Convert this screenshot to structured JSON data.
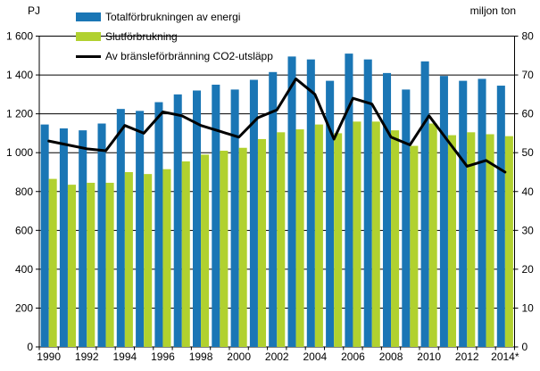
{
  "header": {
    "left_axis_title": "PJ",
    "right_axis_title": "miljon ton"
  },
  "legend": [
    {
      "label": "Totalförbrukningen av energi",
      "type": "bar",
      "color": "#1A76B5"
    },
    {
      "label": "Slutförbrukning",
      "type": "bar",
      "color": "#B1D12F"
    },
    {
      "label": "Av bränsleförbränning CO2-utsläpp",
      "type": "line",
      "color": "#000000"
    }
  ],
  "chart_data": {
    "type": "bar",
    "categories": [
      "1990",
      "1991",
      "1992",
      "1993",
      "1994",
      "1995",
      "1996",
      "1997",
      "1998",
      "1999",
      "2000",
      "2001",
      "2002",
      "2003",
      "2004",
      "2005",
      "2006",
      "2007",
      "2008",
      "2009",
      "2010",
      "2011",
      "2012",
      "2013",
      "2014"
    ],
    "x_tick_labels": [
      "1990",
      "1992",
      "1994",
      "1996",
      "1998",
      "2000",
      "2002",
      "2004",
      "2006",
      "2008",
      "2010",
      "2012",
      "2014*"
    ],
    "series": [
      {
        "name": "Totalförbrukningen av energi",
        "type": "bar",
        "axis": "left",
        "color": "#1A76B5",
        "values": [
          1145,
          1125,
          1115,
          1150,
          1225,
          1215,
          1260,
          1300,
          1320,
          1350,
          1325,
          1375,
          1415,
          1495,
          1480,
          1370,
          1510,
          1480,
          1410,
          1325,
          1470,
          1395,
          1370,
          1380,
          1345
        ]
      },
      {
        "name": "Slutförbrukning",
        "type": "bar",
        "axis": "left",
        "color": "#B1D12F",
        "values": [
          865,
          835,
          845,
          845,
          900,
          890,
          915,
          955,
          990,
          1010,
          1025,
          1070,
          1105,
          1120,
          1145,
          1100,
          1160,
          1160,
          1115,
          1035,
          1150,
          1090,
          1105,
          1095,
          1085
        ]
      },
      {
        "name": "Av bränsleförbränning CO2-utsläpp",
        "type": "line",
        "axis": "right",
        "color": "#000000",
        "values": [
          53,
          52,
          51,
          50.5,
          57,
          55,
          60.5,
          59.5,
          57,
          55.5,
          54,
          59,
          61,
          69,
          65,
          53.5,
          64,
          62.5,
          54,
          52,
          59.5,
          53,
          46.5,
          48,
          45
        ]
      }
    ],
    "left_axis": {
      "title": "PJ",
      "min": 0,
      "max": 1600,
      "step": 200,
      "tick_labels": [
        "0",
        "200",
        "400",
        "600",
        "800",
        "1 000",
        "1 200",
        "1 400",
        "1 600"
      ]
    },
    "right_axis": {
      "title": "miljon ton",
      "min": 0,
      "max": 80,
      "step": 10,
      "tick_labels": [
        "0",
        "10",
        "20",
        "30",
        "40",
        "50",
        "60",
        "70",
        "80"
      ]
    },
    "grid": true,
    "legend_position": "top-left-inside",
    "title": ""
  }
}
